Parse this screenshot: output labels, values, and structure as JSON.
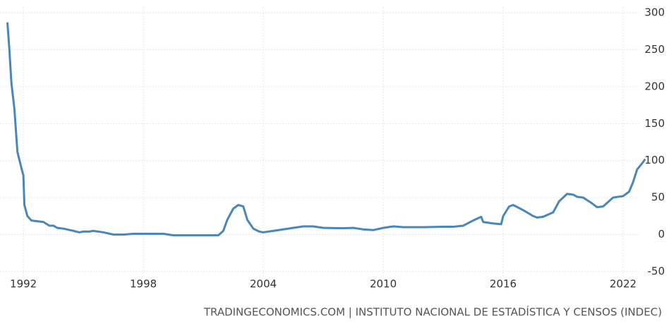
{
  "chart_data": {
    "type": "line",
    "source": "TRADINGECONOMICS.COM | INSTITUTO NACIONAL DE ESTADÍSTICA Y CENSOS (INDEC)",
    "color": "#4a86b8",
    "grid": true,
    "x": [
      1991.2,
      1991.3,
      1991.4,
      1991.55,
      1991.7,
      1991.9,
      1992.0,
      1992.05,
      1992.2,
      1992.4,
      1992.7,
      1993.0,
      1993.3,
      1993.5,
      1993.7,
      1994.0,
      1994.5,
      1994.8,
      1995.0,
      1995.3,
      1995.5,
      1996.0,
      1996.5,
      1997.0,
      1997.5,
      1998.0,
      1998.5,
      1999.0,
      1999.5,
      2000.0,
      2000.5,
      2001.0,
      2001.3,
      2001.5,
      2001.75,
      2002.0,
      2002.2,
      2002.5,
      2002.75,
      2003.0,
      2003.2,
      2003.5,
      2003.8,
      2004.0,
      2004.5,
      2005.0,
      2005.5,
      2006.0,
      2006.5,
      2007.0,
      2008.0,
      2008.5,
      2009.0,
      2009.5,
      2010.0,
      2010.5,
      2011.0,
      2012.0,
      2013.0,
      2013.5,
      2014.0,
      2014.5,
      2014.9,
      2015.0,
      2015.5,
      2015.9,
      2016.0,
      2016.3,
      2016.5,
      2017.0,
      2017.5,
      2017.7,
      2018.0,
      2018.5,
      2018.8,
      2019.2,
      2019.5,
      2019.7,
      2020.0,
      2020.4,
      2020.7,
      2021.0,
      2021.5,
      2022.0,
      2022.3,
      2022.5,
      2022.7,
      2023.0,
      2023.1
    ],
    "values": [
      287,
      250,
      205,
      170,
      112,
      90,
      80,
      40,
      25,
      19,
      18,
      17,
      12,
      12,
      9,
      8,
      5,
      3,
      4,
      4,
      5,
      3,
      0,
      0,
      1,
      1,
      1,
      1,
      -1,
      -1,
      -1,
      -1,
      -1,
      -1,
      -1,
      5,
      20,
      35,
      40,
      38,
      20,
      8,
      4,
      3,
      5,
      7,
      9,
      11,
      11,
      9,
      8.5,
      9,
      7,
      6,
      9,
      11,
      10,
      10,
      10.5,
      10.5,
      12,
      19,
      24,
      17,
      15,
      14,
      25,
      38,
      40,
      33,
      25,
      23,
      24,
      30,
      45,
      55,
      54,
      51,
      50,
      43,
      37,
      38,
      50,
      52,
      58,
      71,
      88,
      98,
      102
    ],
    "xlim": [
      1990.83,
      2023.13
    ],
    "xticks": [
      1992,
      1998,
      2004,
      2010,
      2016,
      2022
    ],
    "ylim": [
      -50,
      300
    ],
    "yticks": [
      -50,
      0,
      50,
      100,
      150,
      200,
      250,
      300
    ]
  }
}
